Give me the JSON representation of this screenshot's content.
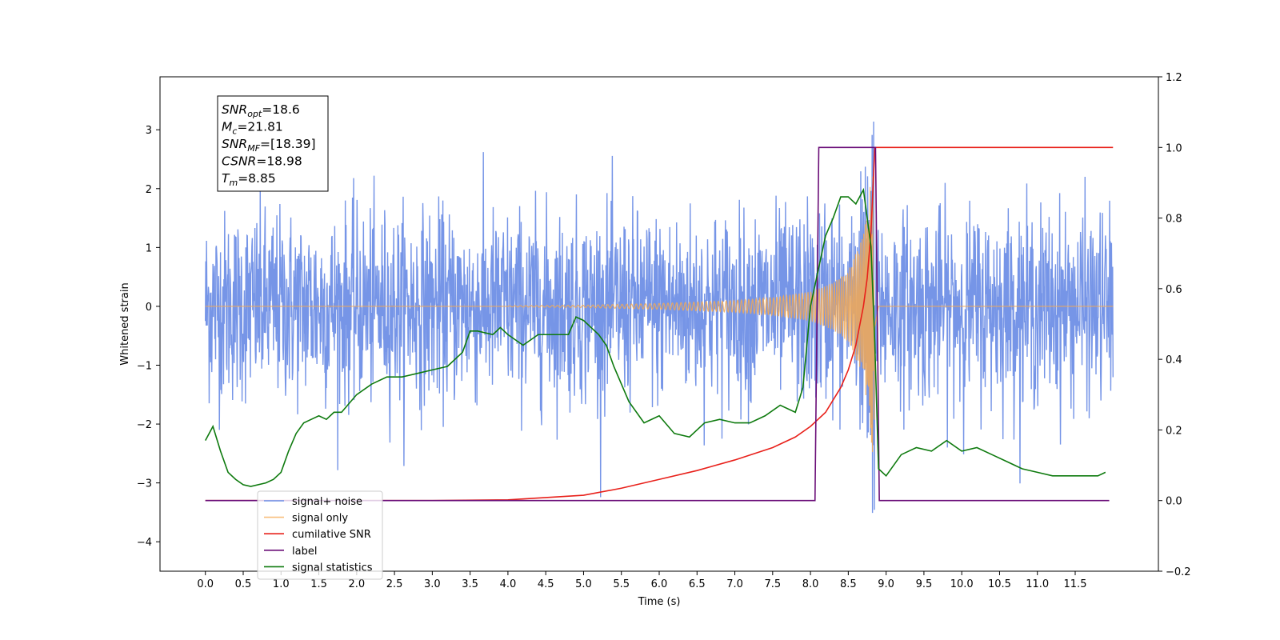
{
  "chart_data": {
    "type": "line",
    "xlabel": "Time (s)",
    "ylabel": "Whitened strain",
    "xlim": [
      -0.6,
      12.6
    ],
    "ylim": [
      -4.5,
      3.9
    ],
    "y2lim": [
      -0.2,
      1.2
    ],
    "x_ticks": [
      "0.0",
      "0.5",
      "1.0",
      "1.5",
      "2.0",
      "2.5",
      "3.0",
      "3.5",
      "4.0",
      "4.5",
      "5.0",
      "5.5",
      "6.0",
      "6.5",
      "7.0",
      "7.5",
      "8.0",
      "8.5",
      "9.0",
      "9.5",
      "10.0",
      "10.5",
      "11.0",
      "11.5"
    ],
    "y_ticks": [
      "3",
      "2",
      "1",
      "0",
      "−1",
      "−2",
      "−3",
      "−4"
    ],
    "y2_ticks": [
      "1.2",
      "1.0",
      "0.8",
      "0.6",
      "0.4",
      "0.2",
      "0.0",
      "−0.2"
    ],
    "legend_position": "lower-left",
    "grid": false,
    "annotation": [
      {
        "name": "SNR",
        "sub": "opt",
        "value": "=18.6"
      },
      {
        "name": "M",
        "sub": "c",
        "value": "=21.81"
      },
      {
        "name": "SNR",
        "sub": "MF",
        "value": "=[18.39]"
      },
      {
        "name": "CSNR",
        "sub": "",
        "value": "=18.98"
      },
      {
        "name": "T",
        "sub": "m",
        "value": "=8.85"
      }
    ],
    "series": [
      {
        "name": "signal+ noise",
        "axis": "left",
        "color": "#6f8fe6",
        "description_values": {
          "noise_sigma": 0.8,
          "duration": 12.0,
          "merger_time": 8.85
        }
      },
      {
        "name": "signal only",
        "axis": "left",
        "color": "#f5a952",
        "envelope": {
          "x": [
            4.0,
            5.0,
            6.0,
            7.0,
            7.5,
            8.0,
            8.3,
            8.5,
            8.7,
            8.8,
            8.85,
            8.9
          ],
          "amp": [
            0.01,
            0.02,
            0.05,
            0.1,
            0.15,
            0.25,
            0.4,
            0.6,
            1.2,
            2.2,
            3.0,
            0.0
          ]
        }
      },
      {
        "name": "cumilative SNR",
        "axis": "right",
        "color": "#e8201a",
        "x": [
          0.0,
          3.0,
          4.0,
          5.0,
          5.5,
          6.0,
          6.5,
          7.0,
          7.5,
          7.8,
          8.0,
          8.2,
          8.4,
          8.5,
          8.6,
          8.7,
          8.75,
          8.8,
          8.85,
          12.0
        ],
        "y": [
          0.0,
          0.0,
          0.002,
          0.015,
          0.035,
          0.06,
          0.085,
          0.115,
          0.15,
          0.18,
          0.21,
          0.25,
          0.32,
          0.37,
          0.44,
          0.55,
          0.63,
          0.76,
          1.0,
          1.0
        ]
      },
      {
        "name": "label",
        "axis": "right",
        "color": "#6a0d77",
        "x": [
          0.0,
          8.06,
          8.11,
          8.86,
          8.91,
          11.95
        ],
        "y": [
          0.0,
          0.0,
          1.0,
          1.0,
          0.0,
          0.0
        ]
      },
      {
        "name": "signal statistics",
        "axis": "right",
        "color": "#0e7a0e",
        "x": [
          0.0,
          0.1,
          0.2,
          0.3,
          0.4,
          0.5,
          0.6,
          0.8,
          0.9,
          1.0,
          1.1,
          1.2,
          1.3,
          1.4,
          1.5,
          1.6,
          1.7,
          1.8,
          2.0,
          2.2,
          2.4,
          2.6,
          2.8,
          3.0,
          3.2,
          3.4,
          3.5,
          3.6,
          3.8,
          3.9,
          4.0,
          4.2,
          4.4,
          4.6,
          4.8,
          4.9,
          5.0,
          5.2,
          5.3,
          5.4,
          5.6,
          5.8,
          6.0,
          6.2,
          6.4,
          6.6,
          6.8,
          7.0,
          7.2,
          7.4,
          7.6,
          7.8,
          7.9,
          8.0,
          8.2,
          8.3,
          8.4,
          8.5,
          8.6,
          8.7,
          8.8,
          8.85,
          8.9,
          9.0,
          9.2,
          9.4,
          9.6,
          9.8,
          10.0,
          10.2,
          10.4,
          10.6,
          10.8,
          11.0,
          11.2,
          11.4,
          11.6,
          11.8,
          11.9
        ],
        "y": [
          0.17,
          0.21,
          0.14,
          0.08,
          0.06,
          0.045,
          0.04,
          0.05,
          0.06,
          0.08,
          0.14,
          0.19,
          0.22,
          0.23,
          0.24,
          0.23,
          0.25,
          0.25,
          0.3,
          0.33,
          0.35,
          0.35,
          0.36,
          0.37,
          0.38,
          0.42,
          0.48,
          0.48,
          0.47,
          0.49,
          0.47,
          0.44,
          0.47,
          0.47,
          0.47,
          0.52,
          0.51,
          0.47,
          0.44,
          0.38,
          0.28,
          0.22,
          0.24,
          0.19,
          0.18,
          0.22,
          0.23,
          0.22,
          0.22,
          0.24,
          0.27,
          0.25,
          0.32,
          0.55,
          0.75,
          0.8,
          0.86,
          0.86,
          0.84,
          0.88,
          0.72,
          0.45,
          0.09,
          0.07,
          0.13,
          0.15,
          0.14,
          0.17,
          0.14,
          0.15,
          0.13,
          0.11,
          0.09,
          0.08,
          0.07,
          0.07,
          0.07,
          0.07,
          0.08
        ]
      }
    ]
  }
}
